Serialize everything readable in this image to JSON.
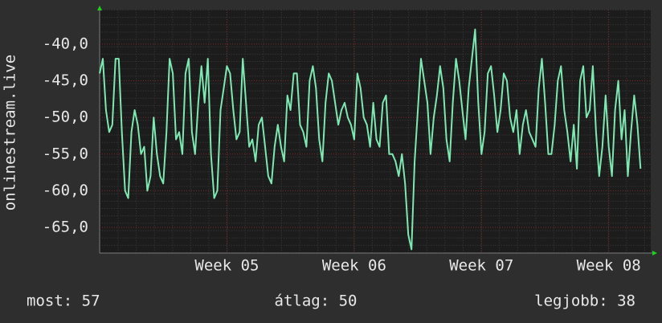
{
  "chart_data": {
    "type": "line",
    "y_label": "onlinestream.live",
    "x": [
      4,
      4.025,
      4.05,
      4.075,
      4.1,
      4.125,
      4.15,
      4.175,
      4.2,
      4.225,
      4.25,
      4.275,
      4.3,
      4.325,
      4.35,
      4.375,
      4.4,
      4.425,
      4.45,
      4.475,
      4.5,
      4.525,
      4.55,
      4.575,
      4.6,
      4.625,
      4.65,
      4.675,
      4.7,
      4.725,
      4.75,
      4.775,
      4.8,
      4.825,
      4.85,
      4.875,
      4.9,
      4.925,
      4.95,
      4.975,
      5,
      5.025,
      5.05,
      5.075,
      5.1,
      5.125,
      5.15,
      5.175,
      5.2,
      5.225,
      5.25,
      5.275,
      5.3,
      5.325,
      5.35,
      5.375,
      5.4,
      5.425,
      5.45,
      5.475,
      5.5,
      5.525,
      5.55,
      5.575,
      5.6,
      5.625,
      5.65,
      5.675,
      5.7,
      5.725,
      5.75,
      5.775,
      5.8,
      5.825,
      5.85,
      5.875,
      5.9,
      5.925,
      5.95,
      5.975,
      6,
      6.025,
      6.05,
      6.075,
      6.1,
      6.125,
      6.15,
      6.175,
      6.2,
      6.225,
      6.25,
      6.275,
      6.3,
      6.325,
      6.35,
      6.375,
      6.4,
      6.425,
      6.45,
      6.475,
      6.5,
      6.525,
      6.55,
      6.575,
      6.6,
      6.625,
      6.65,
      6.675,
      6.7,
      6.725,
      6.75,
      6.775,
      6.8,
      6.825,
      6.85,
      6.875,
      6.9,
      6.925,
      6.95,
      6.975,
      7,
      7.025,
      7.05,
      7.075,
      7.1,
      7.125,
      7.15,
      7.175,
      7.2,
      7.225,
      7.25,
      7.275,
      7.3,
      7.325,
      7.35,
      7.375,
      7.4,
      7.425,
      7.45,
      7.475,
      7.5,
      7.525,
      7.55,
      7.575,
      7.6,
      7.625,
      7.65,
      7.675,
      7.7,
      7.725,
      7.75,
      7.775,
      7.8,
      7.825,
      7.85,
      7.875,
      7.9,
      7.925,
      7.95,
      7.975,
      8,
      8.025,
      8.05,
      8.075,
      8.1,
      8.125,
      8.15,
      8.175,
      8.2,
      8.225,
      8.25
    ],
    "series": [
      {
        "color": "#7ee8b2",
        "values": [
          -44,
          -42,
          -49,
          -52,
          -51,
          -42,
          -42,
          -52,
          -60,
          -61,
          -52,
          -49,
          -51,
          -55,
          -54,
          -60,
          -58,
          -50,
          -55,
          -58,
          -59,
          -52,
          -42,
          -44,
          -53,
          -52,
          -55,
          -44,
          -42,
          -52,
          -55,
          -48,
          -43,
          -48,
          -42,
          -55,
          -61,
          -60,
          -49,
          -46,
          -43,
          -44,
          -49,
          -53,
          -52,
          -42,
          -48,
          -54,
          -53,
          -56,
          -51,
          -50,
          -54,
          -58,
          -59,
          -54,
          -51,
          -54,
          -56,
          -47,
          -49,
          -44,
          -44,
          -51,
          -52,
          -54,
          -45,
          -43,
          -46,
          -53,
          -56,
          -48,
          -44,
          -45,
          -48,
          -51,
          -49,
          -48,
          -50,
          -51,
          -53,
          -44,
          -46,
          -50,
          -51,
          -54,
          -48,
          -53,
          -54,
          -48,
          -47,
          -55,
          -55,
          -56,
          -58,
          -55,
          -59,
          -66,
          -68,
          -56,
          -49,
          -42,
          -45,
          -48,
          -55,
          -50,
          -47,
          -43,
          -46,
          -53,
          -56,
          -48,
          -42,
          -45,
          -49,
          -53,
          -46,
          -42,
          -38,
          -48,
          -55,
          -52,
          -44,
          -43,
          -47,
          -52,
          -49,
          -44,
          -45,
          -50,
          -52,
          -49,
          -55,
          -51,
          -49,
          -52,
          -53,
          -54,
          -46,
          -42,
          -48,
          -55,
          -55,
          -51,
          -45,
          -43,
          -49,
          -52,
          -56,
          -51,
          -57,
          -45,
          -43,
          -50,
          -49,
          -43,
          -52,
          -58,
          -54,
          -47,
          -54,
          -58,
          -49,
          -45,
          -53,
          -49,
          -58,
          -52,
          -47,
          -51,
          -57
        ]
      }
    ],
    "xlim": [
      4,
      8.33
    ],
    "xticks": [
      {
        "value": 5,
        "label": "Week 05"
      },
      {
        "value": 6,
        "label": "Week 06"
      },
      {
        "value": 7,
        "label": "Week 07"
      },
      {
        "value": 8,
        "label": "Week 08"
      }
    ],
    "ylim": [
      -68.5,
      -35.3
    ],
    "yticks": [
      {
        "value": -65,
        "label": "-65,0"
      },
      {
        "value": -60,
        "label": "-60,0"
      },
      {
        "value": -55,
        "label": "-55,0"
      },
      {
        "value": -50,
        "label": "-50,0"
      },
      {
        "value": -45,
        "label": "-45,0"
      },
      {
        "value": -40,
        "label": "-40,0"
      }
    ],
    "grid": true,
    "footer": [
      "most: 57",
      "átlag: 50",
      "legjobb: 38"
    ]
  }
}
